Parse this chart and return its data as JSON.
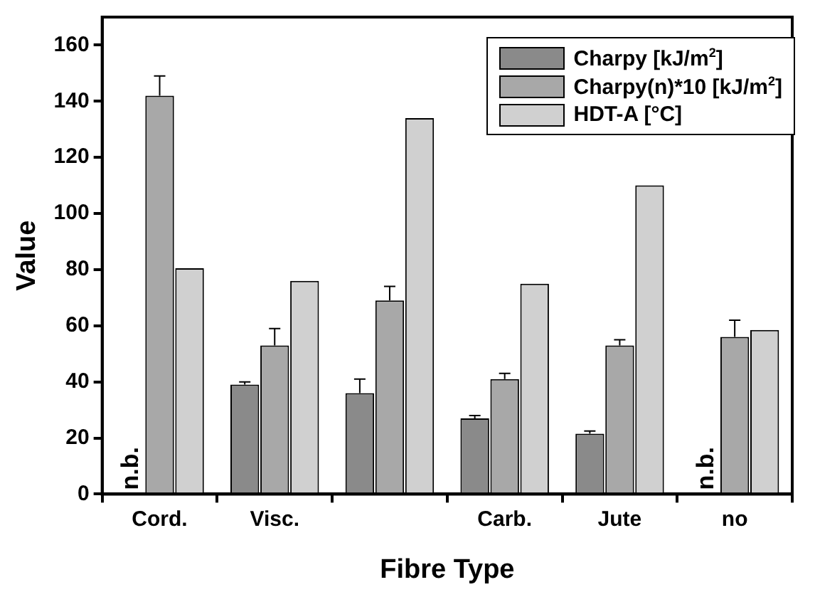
{
  "chart_data": {
    "type": "bar",
    "xlabel": "Fibre Type",
    "ylabel": "Value",
    "categories": [
      "Cord.",
      "Visc.",
      null,
      "Carb.",
      "Jute",
      "no"
    ],
    "series": [
      {
        "name": "Charpy [kJ/m$^{2}$]",
        "color": "#8a8a8a",
        "values": [
          null,
          39,
          36,
          27,
          21.5,
          null
        ],
        "errors": [
          null,
          [
            39,
            40
          ],
          [
            36,
            41
          ],
          [
            27,
            28
          ],
          [
            21.5,
            22.5
          ],
          null
        ]
      },
      {
        "name": "Charpy(n)*10 [kJ/m$^{2}$]",
        "color": "#a8a8a8",
        "values": [
          142,
          53,
          69,
          41,
          53,
          56
        ],
        "errors": [
          [
            142,
            149
          ],
          [
            53,
            59
          ],
          [
            69,
            74
          ],
          [
            41,
            43
          ],
          [
            53,
            55
          ],
          [
            56,
            62
          ]
        ]
      },
      {
        "name": "HDT-A [°C]",
        "color": "#d0d0d0",
        "values": [
          80.5,
          76,
          134,
          75,
          110,
          58.5
        ]
      }
    ],
    "ylim": [
      0,
      170
    ],
    "yticks": [
      0,
      20,
      40,
      60,
      80,
      100,
      120,
      140,
      160
    ],
    "annotations": [
      {
        "text": "n.b.",
        "x": "Cord.",
        "y": 0
      },
      {
        "text": "n.b.",
        "x": "no",
        "y": 0
      }
    ],
    "legend": "top right",
    "grid": false
  }
}
